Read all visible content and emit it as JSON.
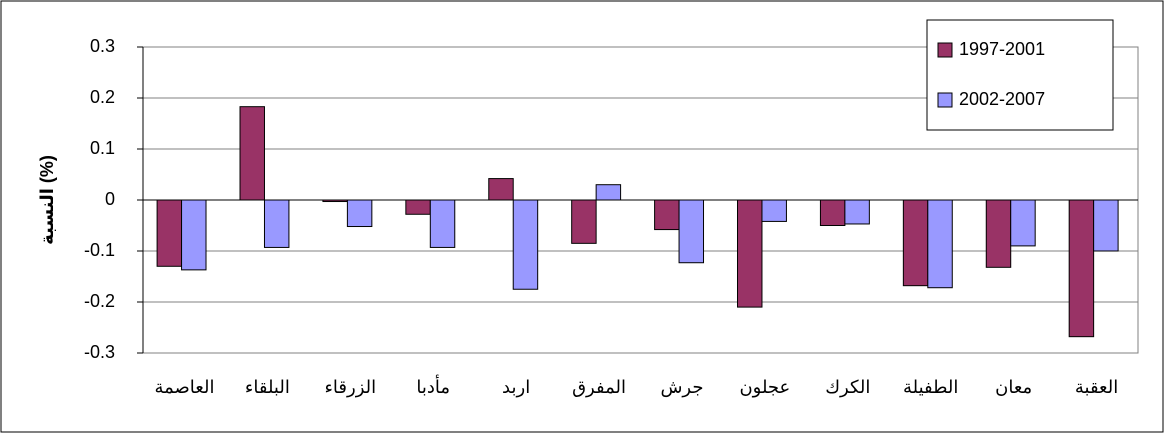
{
  "chart_data": {
    "type": "bar",
    "y_label": "النسبة (%)",
    "categories": [
      "العاصمة",
      "البلقاء",
      "الزرقاء",
      "مأدبا",
      "اربد",
      "المفرق",
      "جرش",
      "عجلون",
      "الكرك",
      "الطفيلة",
      "معان",
      "العقبة"
    ],
    "series": [
      {
        "name": "1997-2001",
        "color": "#993366",
        "values": [
          -0.13,
          0.183,
          -0.003,
          -0.028,
          0.042,
          -0.085,
          -0.058,
          -0.21,
          -0.05,
          -0.168,
          -0.132,
          -0.268
        ]
      },
      {
        "name": "2002-2007",
        "color": "#9999ff",
        "values": [
          -0.137,
          -0.093,
          -0.052,
          -0.093,
          -0.175,
          0.03,
          -0.123,
          -0.042,
          -0.047,
          -0.172,
          -0.09,
          -0.1
        ]
      }
    ],
    "ylim": [
      -0.3,
      0.3
    ],
    "yticks": [
      -0.3,
      -0.2,
      -0.1,
      0,
      0.1,
      0.2,
      0.3
    ],
    "grid": true,
    "legend": "top-right"
  }
}
